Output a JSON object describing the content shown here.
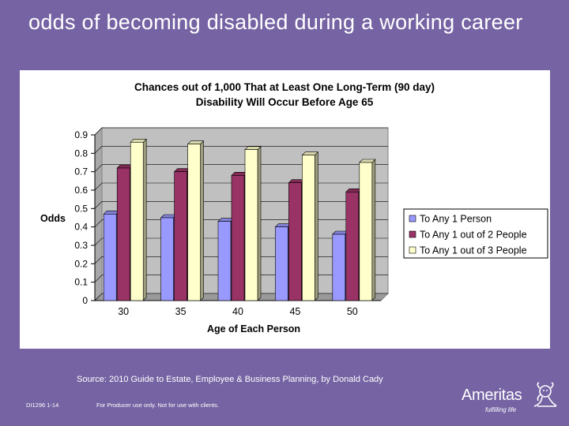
{
  "slide": {
    "title": "odds of becoming disabled during a working career",
    "source": "Source: 2010 Guide to Estate, Employee & Business Planning, by Donald Cady",
    "code": "DI1296 1-14",
    "disclaimer": "For Producer use only. Not for use with clients."
  },
  "logo": {
    "name": "Ameritas",
    "tagline": "fulfilling life",
    "icon": "lion-icon"
  },
  "colors": {
    "background": "#7563a3",
    "series1": "#9999ff",
    "series2": "#993366",
    "series3": "#ffffcc",
    "plot_wall": "#c0c0c0"
  },
  "chart_data": {
    "type": "bar",
    "style": "3d-clustered-column",
    "title_lines": [
      "Chances out of 1,000 That at Least One Long-Term  (90 day)",
      "Disability Will Occur Before Age 65"
    ],
    "xlabel": "Age of Each Person",
    "ylabel": "Odds",
    "categories": [
      "30",
      "35",
      "40",
      "45",
      "50"
    ],
    "ylim": [
      0,
      0.9
    ],
    "yticks": [
      "0",
      "0.1",
      "0.2",
      "0.3",
      "0.4",
      "0.5",
      "0.6",
      "0.7",
      "0.8",
      "0.9"
    ],
    "grid": true,
    "legend_position": "right",
    "series": [
      {
        "name": "To Any  1 Person",
        "values": [
          0.47,
          0.45,
          0.43,
          0.4,
          0.36
        ]
      },
      {
        "name": "To Any  1 out of 2 People",
        "values": [
          0.72,
          0.7,
          0.68,
          0.64,
          0.59
        ]
      },
      {
        "name": "To Any  1 out of 3 People",
        "values": [
          0.86,
          0.85,
          0.82,
          0.79,
          0.75
        ]
      }
    ]
  }
}
